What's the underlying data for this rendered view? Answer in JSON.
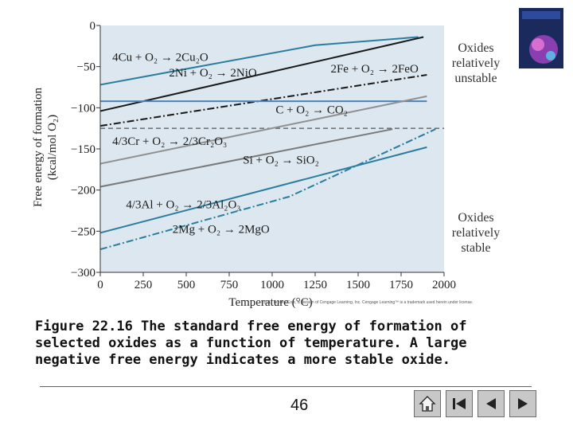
{
  "chart_data": {
    "type": "line",
    "xlabel": "Temperature (°C)",
    "ylabel_line1": "Free energy of formation",
    "ylabel_line2": "(kcal/mol O₂)",
    "xlim": [
      0,
      2000
    ],
    "ylim": [
      -300,
      0
    ],
    "x_ticks": [
      0,
      250,
      500,
      750,
      1000,
      1250,
      1500,
      1750,
      2000
    ],
    "y_ticks": [
      0,
      -50,
      -100,
      -150,
      -200,
      -250,
      -300
    ],
    "x_tick_labels": [
      "0",
      "250",
      "500",
      "750",
      "1000",
      "1250",
      "1500",
      "1750",
      "2000"
    ],
    "y_tick_labels": [
      "0",
      "−50",
      "−100",
      "−150",
      "−200",
      "−250",
      "−300"
    ],
    "series": [
      {
        "name": "4Cu + O₂ → 2Cu₂O",
        "color": "#2a7d9e",
        "style": "solid",
        "points": [
          [
            0,
            -72
          ],
          [
            1250,
            -24
          ],
          [
            1850,
            -14
          ]
        ]
      },
      {
        "name": "2Ni + O₂ → 2NiO",
        "color": "#1a1a1a",
        "style": "solid",
        "points": [
          [
            0,
            -104
          ],
          [
            1880,
            -14
          ]
        ]
      },
      {
        "name": "2Fe + O₂ → 2FeO",
        "color": "#1a1a1a",
        "style": "dashdot",
        "points": [
          [
            0,
            -122
          ],
          [
            1900,
            -60
          ]
        ]
      },
      {
        "name": "C + O₂ → CO₂",
        "color": "#4a84b8",
        "style": "solid",
        "points": [
          [
            0,
            -92
          ],
          [
            1900,
            -92
          ]
        ]
      },
      {
        "name": "4/3Cr + O₂ → 2/3Cr₂O₃",
        "color": "#909090",
        "style": "solid",
        "points": [
          [
            0,
            -168
          ],
          [
            1900,
            -86
          ]
        ]
      },
      {
        "name": "Si + O₂ → SiO₂",
        "color": "#7a7a7a",
        "style": "solid",
        "points": [
          [
            0,
            -196
          ],
          [
            1700,
            -126
          ]
        ]
      },
      {
        "name": "4/3Al + O₂ → 2/3Al₂O₃",
        "color": "#2a7d9e",
        "style": "solid",
        "points": [
          [
            0,
            -252
          ],
          [
            1900,
            -148
          ]
        ]
      },
      {
        "name": "2Mg + O₂ → 2MgO",
        "color": "#2a7d9e",
        "style": "dashdot",
        "points": [
          [
            0,
            -272
          ],
          [
            1100,
            -208
          ],
          [
            1950,
            -126
          ]
        ]
      }
    ],
    "reference_line": {
      "y": -125,
      "style": "dashed"
    },
    "equation_labels": [
      {
        "text": "4Cu + O₂ → 2Cu₂O",
        "x": 70,
        "y": -43
      },
      {
        "text": "2Ni + O₂ → 2NiO",
        "x": 400,
        "y": -62
      },
      {
        "text": "2Fe + O₂ → 2FeO",
        "x": 1340,
        "y": -57
      },
      {
        "text": "C + O₂ → CO₂",
        "x": 1020,
        "y": -107
      },
      {
        "text": "4/3Cr + O₂ → 2/3Cr₂O₃",
        "x": 70,
        "y": -145
      },
      {
        "text": "Si + O₂ → SiO₂",
        "x": 830,
        "y": -168
      },
      {
        "text": "4/3Al + O₂ → 2/3Al₂O₃",
        "x": 150,
        "y": -222
      },
      {
        "text": "2Mg + O₂ → 2MgO",
        "x": 420,
        "y": -252
      }
    ],
    "annotation_top": [
      "Oxides",
      "relatively",
      "unstable"
    ],
    "annotation_bottom": [
      "Oxides",
      "relatively",
      "stable"
    ]
  },
  "copyright": "©2011 Brooks/Cole, a division of Cengage Learning, Inc.  Cengage Learning™ is a trademark used herein under license.",
  "caption": "Figure 22.16  The standard free energy of formation of selected oxides as a function of temperature. A large negative free energy indicates a more stable oxide.",
  "page_number": "46",
  "nav_buttons": [
    "home-icon",
    "first-slide-icon",
    "previous-slide-icon",
    "next-slide-icon"
  ],
  "colors": {
    "plot_bg": "#dce7ef",
    "accent_line": "#c0392b",
    "button_bg": "#c8c8c8"
  }
}
